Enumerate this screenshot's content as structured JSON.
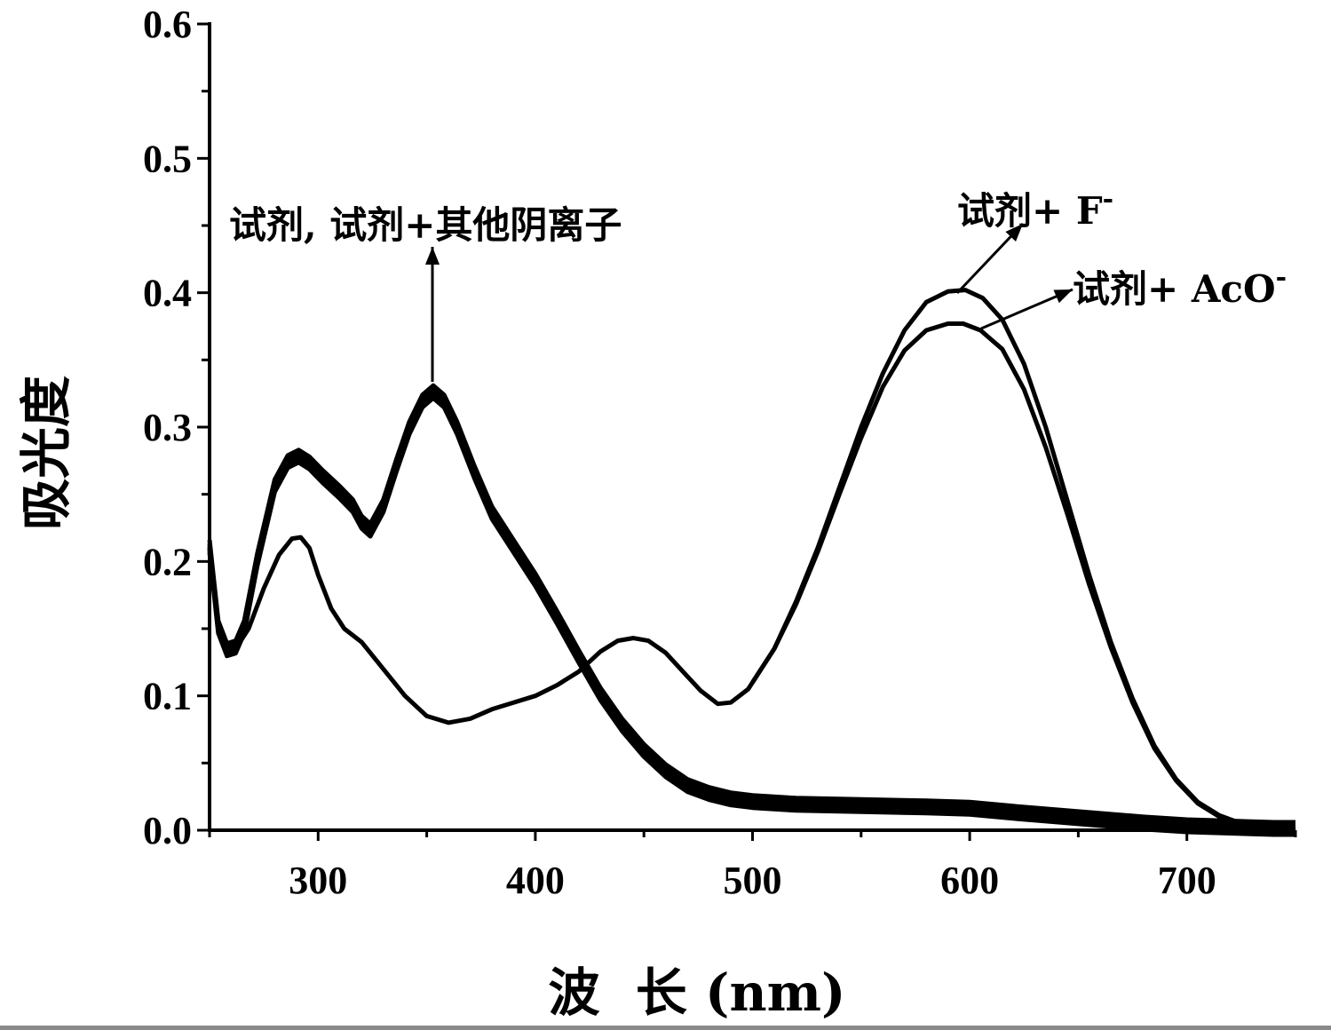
{
  "chart_data": {
    "type": "line",
    "title": "",
    "xlabel": "波  长 (nm)",
    "ylabel": "吸光度",
    "xlim": [
      250,
      750
    ],
    "ylim": [
      0,
      0.6
    ],
    "xticks": [
      300,
      400,
      500,
      600,
      700
    ],
    "xtick_labels": [
      "300",
      "400",
      "500",
      "600",
      "700"
    ],
    "yticks": [
      0.0,
      0.1,
      0.2,
      0.3,
      0.4,
      0.5,
      0.6
    ],
    "ytick_labels": [
      "0.0",
      "0.1",
      "0.2",
      "0.3",
      "0.4",
      "0.5",
      "0.6"
    ],
    "grid": false,
    "series": [
      {
        "name": "试剂, 试剂+其他阴离子",
        "x": [
          250,
          254,
          258,
          262,
          266,
          272,
          280,
          286,
          291,
          296,
          302,
          310,
          316,
          320,
          324,
          330,
          336,
          342,
          348,
          353,
          358,
          364,
          372,
          380,
          390,
          400,
          410,
          420,
          430,
          440,
          450,
          460,
          470,
          480,
          490,
          500,
          520,
          550,
          580,
          600,
          620,
          650,
          680,
          700,
          720,
          740,
          750
        ],
        "y": [
          0.21,
          0.15,
          0.133,
          0.135,
          0.15,
          0.2,
          0.255,
          0.273,
          0.277,
          0.272,
          0.262,
          0.25,
          0.24,
          0.228,
          0.222,
          0.24,
          0.27,
          0.298,
          0.318,
          0.325,
          0.318,
          0.298,
          0.265,
          0.235,
          0.21,
          0.185,
          0.157,
          0.128,
          0.1,
          0.077,
          0.058,
          0.043,
          0.032,
          0.026,
          0.022,
          0.02,
          0.018,
          0.017,
          0.016,
          0.015,
          0.012,
          0.008,
          0.004,
          0.002,
          0.001,
          0.0,
          0.0
        ]
      },
      {
        "name": "试剂+ F-",
        "x": [
          250,
          254,
          258,
          262,
          268,
          275,
          282,
          288,
          292,
          296,
          300,
          306,
          312,
          320,
          330,
          340,
          350,
          360,
          370,
          380,
          390,
          400,
          410,
          420,
          430,
          438,
          445,
          452,
          460,
          468,
          476,
          484,
          490,
          498,
          510,
          520,
          530,
          540,
          550,
          560,
          570,
          580,
          590,
          598,
          606,
          615,
          625,
          635,
          645,
          655,
          665,
          675,
          685,
          695,
          705,
          715,
          725,
          735,
          750
        ],
        "y": [
          0.21,
          0.15,
          0.133,
          0.135,
          0.15,
          0.18,
          0.205,
          0.217,
          0.218,
          0.21,
          0.19,
          0.165,
          0.15,
          0.14,
          0.12,
          0.1,
          0.085,
          0.08,
          0.083,
          0.09,
          0.095,
          0.1,
          0.108,
          0.118,
          0.133,
          0.141,
          0.143,
          0.141,
          0.132,
          0.118,
          0.104,
          0.094,
          0.095,
          0.105,
          0.135,
          0.17,
          0.21,
          0.255,
          0.3,
          0.34,
          0.372,
          0.393,
          0.401,
          0.402,
          0.396,
          0.38,
          0.347,
          0.3,
          0.245,
          0.19,
          0.14,
          0.098,
          0.063,
          0.038,
          0.021,
          0.011,
          0.005,
          0.002,
          0.0
        ]
      },
      {
        "name": "试剂+ AcO-",
        "x": [
          500,
          510,
          520,
          530,
          540,
          550,
          560,
          570,
          580,
          590,
          597,
          605,
          615,
          625,
          635,
          645,
          655,
          665,
          675,
          685,
          695,
          705,
          715,
          725,
          735,
          750
        ],
        "y": [
          0.11,
          0.135,
          0.168,
          0.207,
          0.25,
          0.292,
          0.33,
          0.357,
          0.372,
          0.377,
          0.377,
          0.372,
          0.358,
          0.328,
          0.285,
          0.235,
          0.183,
          0.136,
          0.095,
          0.061,
          0.037,
          0.02,
          0.01,
          0.005,
          0.002,
          0.0
        ]
      }
    ],
    "annotations": [
      {
        "text": "试剂, 试剂+其他阴离子",
        "target_x": 353,
        "target_y": 0.33
      },
      {
        "text": "试剂+ F",
        "superscript": "-",
        "target_x": 598,
        "target_y": 0.402
      },
      {
        "text": "试剂+ AcO",
        "superscript": "-",
        "target_x": 610,
        "target_y": 0.375
      }
    ]
  }
}
